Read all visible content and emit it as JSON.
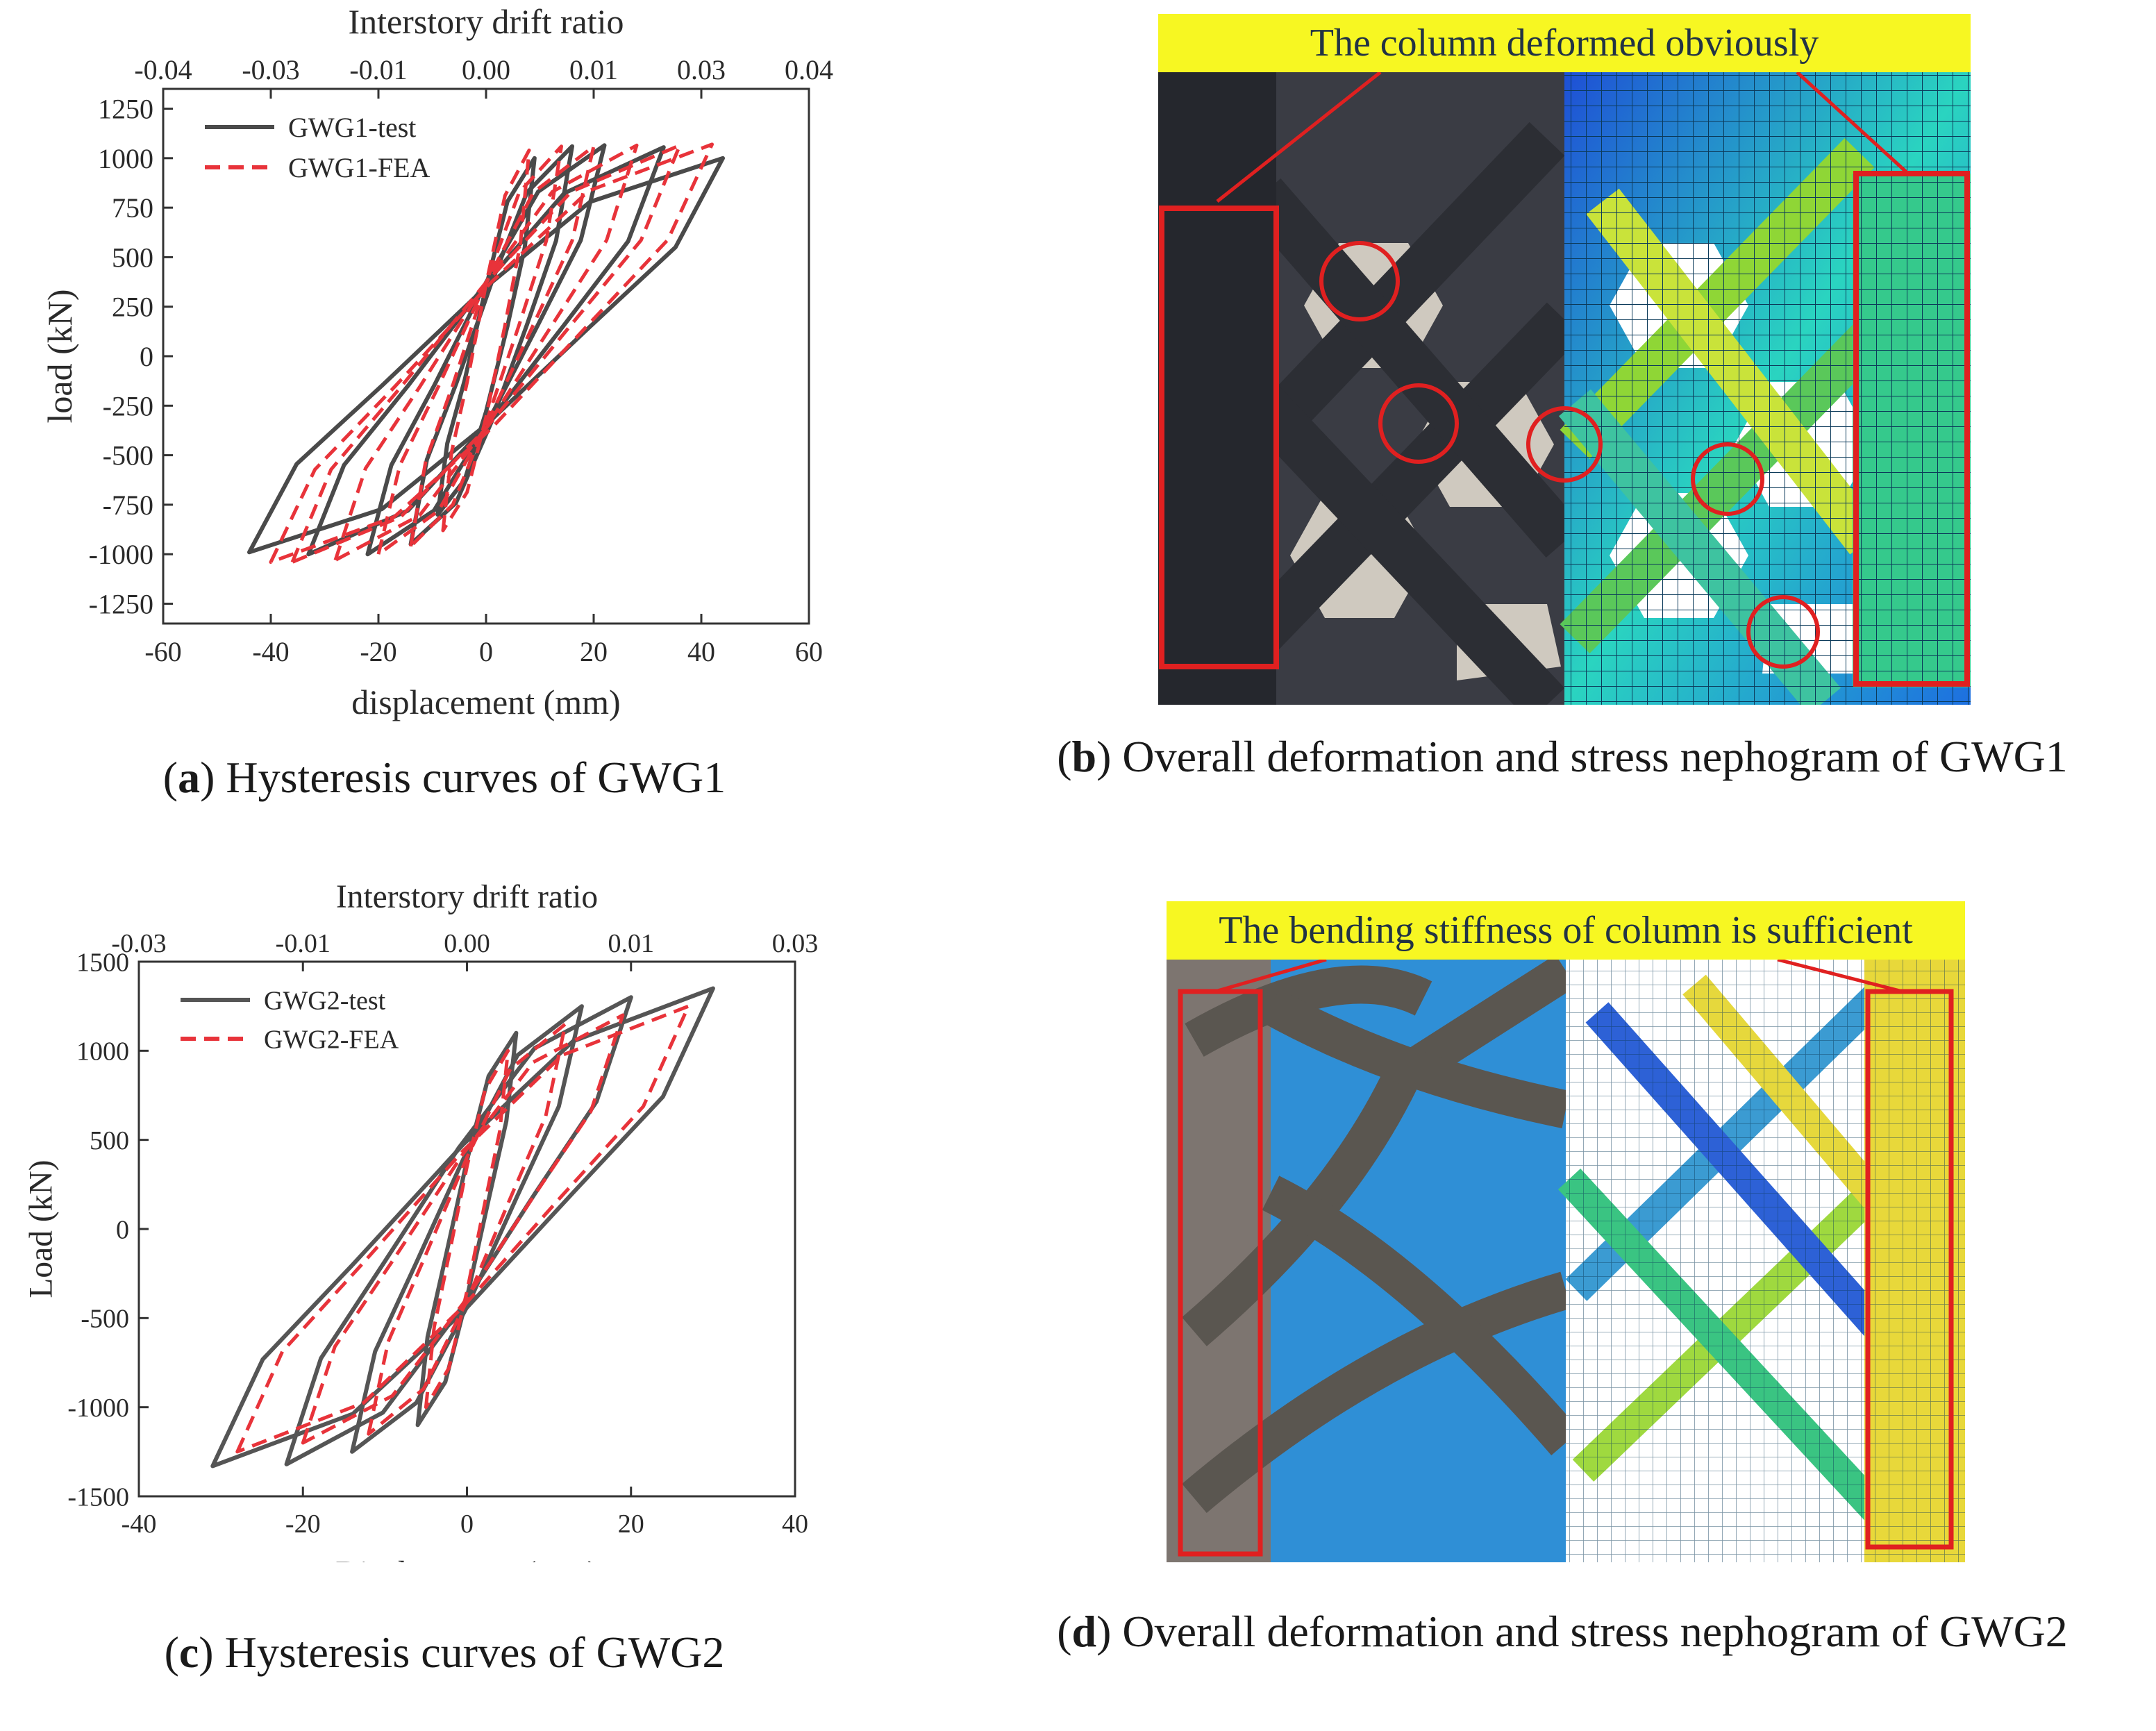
{
  "panel_a": {
    "caption_letter": "a",
    "caption_text": "Hysteresis curves of GWG1",
    "chart_data": {
      "type": "line",
      "title": "",
      "xlabel": "displacement (mm)",
      "ylabel": "load (kN)",
      "top_xlabel": "Interstory drift ratio",
      "xlim": [
        -60,
        60
      ],
      "ylim": [
        -1350,
        1350
      ],
      "xticks": [
        -60,
        -40,
        -20,
        0,
        20,
        40,
        60
      ],
      "yticks": [
        1250,
        1000,
        750,
        500,
        250,
        0,
        -250,
        -500,
        -750,
        -1000,
        -1250
      ],
      "top_tick_labels": [
        "-0.04",
        "-0.03",
        "-0.01",
        "0.00",
        "0.01",
        "0.03",
        "0.04"
      ],
      "legend_position": "top-left",
      "series": [
        {
          "name": "GWG1-test",
          "style": "solid",
          "color": "#4a4a4a",
          "loops": [
            {
              "amp_neg": -9,
              "amp_pos": 9,
              "peak_neg": -800,
              "peak_pos": 1000
            },
            {
              "amp_neg": -14,
              "amp_pos": 16,
              "peak_neg": -950,
              "peak_pos": 1060
            },
            {
              "amp_neg": -22,
              "amp_pos": 22,
              "peak_neg": -1000,
              "peak_pos": 1065
            },
            {
              "amp_neg": -33,
              "amp_pos": 33,
              "peak_neg": -1000,
              "peak_pos": 1055
            },
            {
              "amp_neg": -44,
              "amp_pos": 44,
              "peak_neg": -990,
              "peak_pos": 1000
            }
          ]
        },
        {
          "name": "GWG1-FEA",
          "style": "dashed",
          "color": "#e8333a",
          "loops": [
            {
              "amp_neg": -8,
              "amp_pos": 8,
              "peak_neg": -880,
              "peak_pos": 1040
            },
            {
              "amp_neg": -14,
              "amp_pos": 14,
              "peak_neg": -960,
              "peak_pos": 1060
            },
            {
              "amp_neg": -20,
              "amp_pos": 20,
              "peak_neg": -1000,
              "peak_pos": 1060
            },
            {
              "amp_neg": -28,
              "amp_pos": 28,
              "peak_neg": -1030,
              "peak_pos": 1065
            },
            {
              "amp_neg": -36,
              "amp_pos": 36,
              "peak_neg": -1040,
              "peak_pos": 1065
            },
            {
              "amp_neg": -40,
              "amp_pos": 42,
              "peak_neg": -1040,
              "peak_pos": 1070
            }
          ]
        }
      ]
    }
  },
  "panel_b": {
    "caption_letter": "b",
    "caption_text": "Overall deformation and stress nephogram of GWG1",
    "banner": "The column deformed obviously"
  },
  "panel_c": {
    "caption_letter": "c",
    "caption_text": "Hysteresis curves of GWG2",
    "chart_data": {
      "type": "line",
      "title": "",
      "xlabel": "Displacement (mm)",
      "ylabel": "Load (kN)",
      "top_xlabel": "Interstory drift ratio",
      "xlim": [
        -40,
        40
      ],
      "ylim": [
        -1500,
        1500
      ],
      "xticks": [
        -40,
        -20,
        0,
        20,
        40
      ],
      "yticks": [
        1500,
        1000,
        500,
        0,
        -500,
        -1000,
        -1500
      ],
      "top_tick_labels": [
        "-0.03",
        "-0.01",
        "0.00",
        "0.01",
        "0.03"
      ],
      "legend_position": "top-left",
      "series": [
        {
          "name": "GWG2-test",
          "style": "solid",
          "color": "#555555",
          "loops": [
            {
              "amp_neg": -6,
              "amp_pos": 6,
              "peak_neg": -1100,
              "peak_pos": 1100
            },
            {
              "amp_neg": -14,
              "amp_pos": 14,
              "peak_neg": -1250,
              "peak_pos": 1250
            },
            {
              "amp_neg": -22,
              "amp_pos": 20,
              "peak_neg": -1320,
              "peak_pos": 1300
            },
            {
              "amp_neg": -31,
              "amp_pos": 30,
              "peak_neg": -1330,
              "peak_pos": 1350
            }
          ]
        },
        {
          "name": "GWG2-FEA",
          "style": "dashed",
          "color": "#e8333a",
          "loops": [
            {
              "amp_neg": -5,
              "amp_pos": 5,
              "peak_neg": -1000,
              "peak_pos": 1000
            },
            {
              "amp_neg": -12,
              "amp_pos": 12,
              "peak_neg": -1150,
              "peak_pos": 1150
            },
            {
              "amp_neg": -20,
              "amp_pos": 19,
              "peak_neg": -1200,
              "peak_pos": 1200
            },
            {
              "amp_neg": -28,
              "amp_pos": 27,
              "peak_neg": -1250,
              "peak_pos": 1250
            }
          ]
        }
      ]
    }
  },
  "panel_d": {
    "caption_letter": "d",
    "caption_text": "Overall deformation and stress nephogram of GWG2",
    "banner": "The bending stiffness of column is sufficient"
  }
}
